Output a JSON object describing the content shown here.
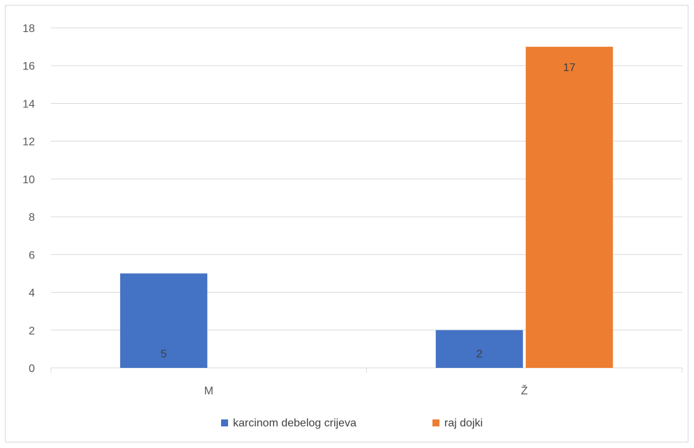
{
  "chart_data": {
    "type": "bar",
    "categories": [
      "M",
      "Ž"
    ],
    "series": [
      {
        "name": "karcinom debelog crijeva",
        "color": "#4472c4",
        "values": [
          5,
          2
        ],
        "labels": [
          "5",
          "2"
        ]
      },
      {
        "name": "raj dojki",
        "color": "#ed7d31",
        "values": [
          0,
          17
        ],
        "labels": [
          "",
          "17"
        ]
      }
    ],
    "ylim": [
      0,
      18
    ],
    "yticks": [
      0,
      2,
      4,
      6,
      8,
      10,
      12,
      14,
      16,
      18
    ],
    "grid": true,
    "legend": "bottom",
    "title": "",
    "xlabel": "",
    "ylabel": ""
  }
}
